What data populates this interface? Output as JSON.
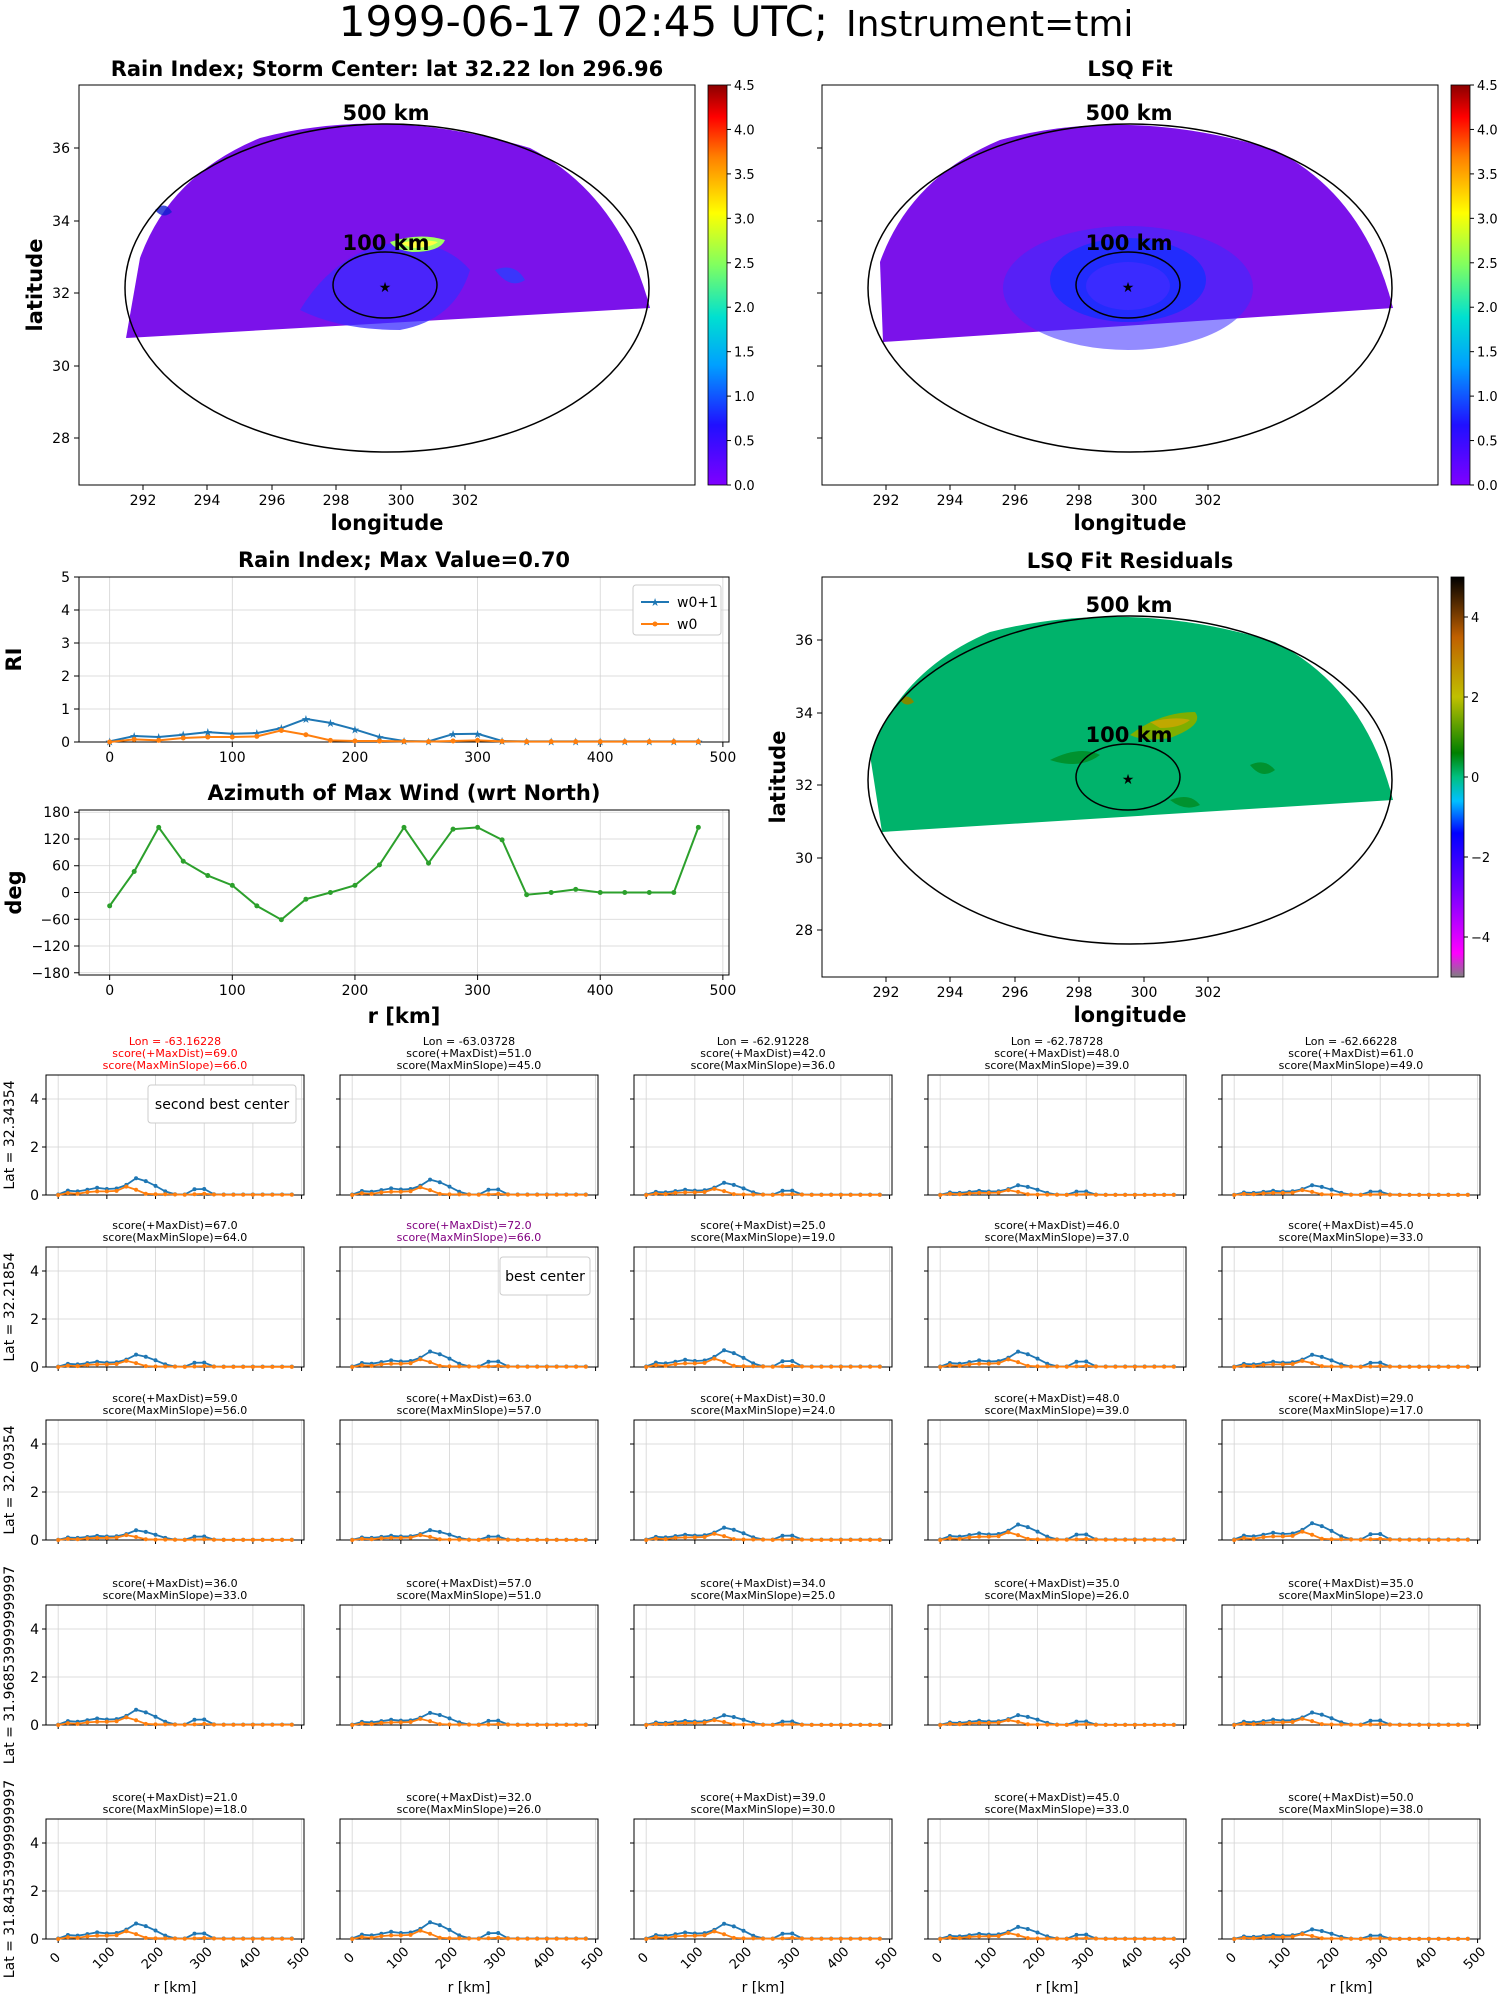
{
  "title": {
    "main": "1999-06-17 02:45 UTC;",
    "instrument": "Instrument=tmi"
  },
  "colors": {
    "blue": "#1f77b4",
    "orange": "#ff7f0e",
    "green": "#2ca02c",
    "red": "#ff0000",
    "purple": "#800080",
    "grid": "#d3d3d3",
    "swath": "#7b12ea",
    "residual_field": "#00b36b"
  },
  "icons": {
    "storm_center": "star-icon"
  },
  "map_panels": [
    {
      "id": "rain-index-map",
      "title": "Rain Index; Storm Center: lat 32.22 lon 296.96",
      "xlabel": "longitude",
      "ylabel": "latitude",
      "xticks": [
        "292",
        "294",
        "296",
        "298",
        "300",
        "302"
      ],
      "yticks": [
        "28",
        "30",
        "32",
        "34",
        "36"
      ],
      "ring_labels": [
        "500 km",
        "100 km"
      ],
      "colorbar": "jet",
      "colorbar_ticks": [
        "0.0",
        "0.5",
        "1.0",
        "1.5",
        "2.0",
        "2.5",
        "3.0",
        "3.5",
        "4.0",
        "4.5"
      ]
    },
    {
      "id": "lsq-fit-map",
      "title": "LSQ Fit",
      "xlabel": "longitude",
      "ylabel": "",
      "xticks": [
        "292",
        "294",
        "296",
        "298",
        "300",
        "302"
      ],
      "yticks": [],
      "ring_labels": [
        "500 km",
        "100 km"
      ],
      "colorbar": "jet",
      "colorbar_ticks": [
        "0.0",
        "0.5",
        "1.0",
        "1.5",
        "2.0",
        "2.5",
        "3.0",
        "3.5",
        "4.0",
        "4.5"
      ]
    },
    {
      "id": "residuals-map",
      "title": "LSQ Fit Residuals",
      "xlabel": "longitude",
      "ylabel": "latitude",
      "xticks": [
        "292",
        "294",
        "296",
        "298",
        "300",
        "302"
      ],
      "yticks": [
        "28",
        "30",
        "32",
        "34",
        "36"
      ],
      "ring_labels": [
        "500 km",
        "100 km"
      ],
      "colorbar": "diverging",
      "colorbar_ticks": [
        "−4",
        "−2",
        "0",
        "2",
        "4"
      ]
    }
  ],
  "chart_data": [
    {
      "type": "line",
      "title": "Rain Index; Max Value=0.70",
      "xlabel": "",
      "ylabel": "RI",
      "xlim": [
        -25,
        505
      ],
      "ylim": [
        0,
        5
      ],
      "xticks": [
        0,
        100,
        200,
        300,
        400,
        500
      ],
      "yticks": [
        0,
        1,
        2,
        3,
        4,
        5
      ],
      "grid": true,
      "legend": "top-right",
      "x": [
        0,
        20,
        40,
        60,
        80,
        100,
        120,
        140,
        160,
        180,
        200,
        220,
        240,
        260,
        280,
        300,
        320,
        340,
        360,
        380,
        400,
        420,
        440,
        460,
        480
      ],
      "series": [
        {
          "name": "w0+1",
          "values": [
            0.02,
            0.18,
            0.15,
            0.22,
            0.3,
            0.25,
            0.27,
            0.42,
            0.7,
            0.58,
            0.38,
            0.15,
            0.03,
            0.02,
            0.24,
            0.25,
            0.03,
            0.02,
            0.02,
            0.02,
            0.02,
            0.02,
            0.02,
            0.02,
            0.02
          ]
        },
        {
          "name": "w0",
          "values": [
            0.0,
            0.08,
            0.05,
            0.12,
            0.15,
            0.15,
            0.17,
            0.35,
            0.22,
            0.05,
            0.03,
            0.03,
            0.02,
            0.01,
            0.03,
            0.05,
            0.02,
            0.01,
            0.01,
            0.01,
            0.01,
            0.01,
            0.01,
            0.01,
            0.01
          ]
        }
      ]
    },
    {
      "type": "line",
      "title": "Azimuth of Max Wind (wrt North)",
      "xlabel": "r [km]",
      "ylabel": "deg",
      "xlim": [
        -25,
        505
      ],
      "ylim": [
        -185,
        185
      ],
      "xticks": [
        0,
        100,
        200,
        300,
        400,
        500
      ],
      "yticks": [
        180,
        120,
        60,
        0,
        -60,
        -120,
        -180
      ],
      "grid": true,
      "x": [
        0,
        20,
        40,
        60,
        80,
        100,
        120,
        140,
        160,
        180,
        200,
        220,
        240,
        260,
        280,
        300,
        320,
        340,
        360,
        380,
        400,
        420,
        440,
        460,
        480
      ],
      "series": [
        {
          "name": "",
          "values": [
            -30,
            47,
            146,
            70,
            38,
            16,
            -30,
            -61,
            -15,
            0,
            16,
            62,
            146,
            66,
            142,
            146,
            118,
            -5,
            0,
            7,
            0,
            0,
            0,
            0,
            146
          ]
        }
      ]
    }
  ],
  "grid_panels": {
    "row_labels": [
      "Lat = 32.34354",
      "Lat = 32.21854",
      "Lat = 32.09354",
      "Lat = 31.968539999999997",
      "Lat = 31.843539999999997"
    ],
    "col_labels": [
      "Lon = -63.16228",
      "Lon = -63.03728",
      "Lon = -62.91228",
      "Lon = -62.78728",
      "Lon = -62.66228"
    ],
    "xlabel": "r [km]",
    "xticks": [
      "0",
      "100",
      "200",
      "300",
      "400",
      "500"
    ],
    "yticks": [
      "0",
      "2",
      "4"
    ],
    "legend_labels": {
      "second": "second best center",
      "best": "best center"
    },
    "scores": [
      [
        [
          "score(+MaxDist)=69.0",
          "score(MaxMinSlope)=66.0"
        ],
        [
          "score(+MaxDist)=51.0",
          "score(MaxMinSlope)=45.0"
        ],
        [
          "score(+MaxDist)=42.0",
          "score(MaxMinSlope)=36.0"
        ],
        [
          "score(+MaxDist)=48.0",
          "score(MaxMinSlope)=39.0"
        ],
        [
          "score(+MaxDist)=61.0",
          "score(MaxMinSlope)=49.0"
        ]
      ],
      [
        [
          "score(+MaxDist)=67.0",
          "score(MaxMinSlope)=64.0"
        ],
        [
          "score(+MaxDist)=72.0",
          "score(MaxMinSlope)=66.0"
        ],
        [
          "score(+MaxDist)=25.0",
          "score(MaxMinSlope)=19.0"
        ],
        [
          "score(+MaxDist)=46.0",
          "score(MaxMinSlope)=37.0"
        ],
        [
          "score(+MaxDist)=45.0",
          "score(MaxMinSlope)=33.0"
        ]
      ],
      [
        [
          "score(+MaxDist)=59.0",
          "score(MaxMinSlope)=56.0"
        ],
        [
          "score(+MaxDist)=63.0",
          "score(MaxMinSlope)=57.0"
        ],
        [
          "score(+MaxDist)=30.0",
          "score(MaxMinSlope)=24.0"
        ],
        [
          "score(+MaxDist)=48.0",
          "score(MaxMinSlope)=39.0"
        ],
        [
          "score(+MaxDist)=29.0",
          "score(MaxMinSlope)=17.0"
        ]
      ],
      [
        [
          "score(+MaxDist)=36.0",
          "score(MaxMinSlope)=33.0"
        ],
        [
          "score(+MaxDist)=57.0",
          "score(MaxMinSlope)=51.0"
        ],
        [
          "score(+MaxDist)=34.0",
          "score(MaxMinSlope)=25.0"
        ],
        [
          "score(+MaxDist)=35.0",
          "score(MaxMinSlope)=26.0"
        ],
        [
          "score(+MaxDist)=35.0",
          "score(MaxMinSlope)=23.0"
        ]
      ],
      [
        [
          "score(+MaxDist)=21.0",
          "score(MaxMinSlope)=18.0"
        ],
        [
          "score(+MaxDist)=32.0",
          "score(MaxMinSlope)=26.0"
        ],
        [
          "score(+MaxDist)=39.0",
          "score(MaxMinSlope)=30.0"
        ],
        [
          "score(+MaxDist)=45.0",
          "score(MaxMinSlope)=33.0"
        ],
        [
          "score(+MaxDist)=50.0",
          "score(MaxMinSlope)=38.0"
        ]
      ]
    ]
  }
}
